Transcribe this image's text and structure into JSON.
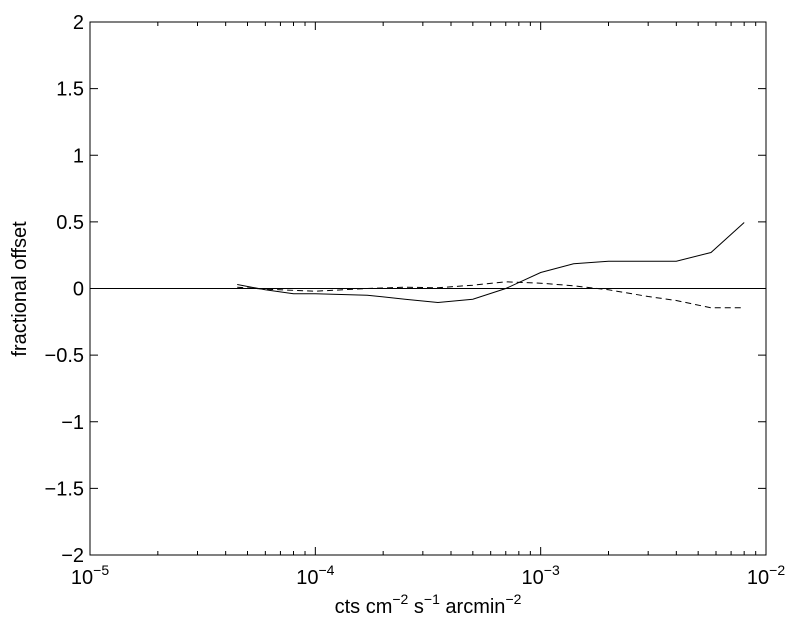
{
  "chart_data": {
    "type": "line",
    "title": "",
    "xlabel_parts": {
      "base": "cts cm",
      "exp1": "−2",
      "mid": " s",
      "exp2": "−1",
      "tail": " arcmin",
      "exp3": "−2"
    },
    "ylabel": "fractional offset",
    "xscale": "log",
    "xlim": [
      1e-05,
      0.01
    ],
    "ylim": [
      -2,
      2
    ],
    "grid": false,
    "x_ticks": [
      {
        "value": 1e-05,
        "base": "10",
        "exp": "−5"
      },
      {
        "value": 0.0001,
        "base": "10",
        "exp": "−4"
      },
      {
        "value": 0.001,
        "base": "10",
        "exp": "−3"
      },
      {
        "value": 0.01,
        "base": "10",
        "exp": "−2"
      }
    ],
    "y_ticks": [
      {
        "value": 2,
        "label": "2"
      },
      {
        "value": 1.5,
        "label": "1.5"
      },
      {
        "value": 1,
        "label": "1"
      },
      {
        "value": 0.5,
        "label": "0.5"
      },
      {
        "value": 0,
        "label": "0"
      },
      {
        "value": -0.5,
        "label": "−0.5"
      },
      {
        "value": -1,
        "label": "−1"
      },
      {
        "value": -1.5,
        "label": "−1.5"
      },
      {
        "value": -2,
        "label": "−2"
      }
    ],
    "reference_line_y": 0,
    "series": [
      {
        "style": "solid",
        "x": [
          4.5e-05,
          6e-05,
          8e-05,
          0.0001,
          0.00017,
          0.00025,
          0.00035,
          0.0005,
          0.0007,
          0.001,
          0.0014,
          0.002,
          0.003,
          0.004,
          0.0057,
          0.008
        ],
        "y": [
          0.03,
          -0.01,
          -0.04,
          -0.04,
          -0.05,
          -0.08,
          -0.105,
          -0.08,
          0.0,
          0.12,
          0.185,
          0.205,
          0.205,
          0.205,
          0.27,
          0.495
        ]
      },
      {
        "style": "dashed",
        "x": [
          4.5e-05,
          6e-05,
          0.0001,
          0.00017,
          0.00025,
          0.00035,
          0.0005,
          0.0007,
          0.001,
          0.0014,
          0.002,
          0.003,
          0.004,
          0.0057,
          0.008
        ],
        "y": [
          0.01,
          -0.005,
          -0.02,
          0.0,
          0.01,
          0.005,
          0.025,
          0.05,
          0.04,
          0.02,
          -0.01,
          -0.06,
          -0.09,
          -0.145,
          -0.145
        ]
      }
    ]
  }
}
